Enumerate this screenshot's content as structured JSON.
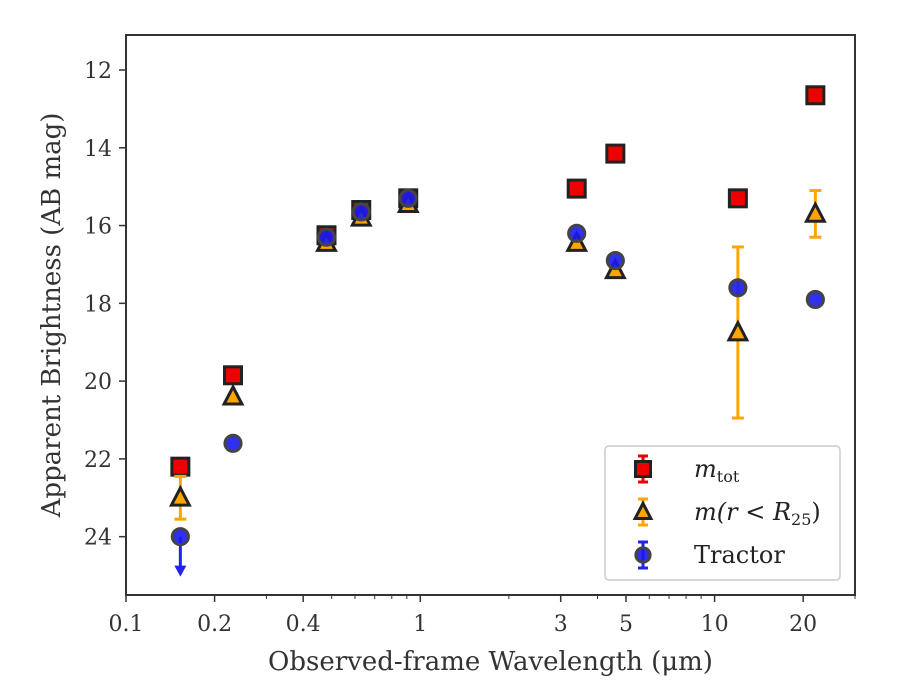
{
  "chart_data": {
    "type": "scatter",
    "title": "",
    "xlabel": "Observed-frame Wavelength (μm)",
    "ylabel": "Apparent Brightness (AB mag)",
    "xscale": "log",
    "xlim": [
      0.1,
      30
    ],
    "ylim": [
      25.5,
      11.1
    ],
    "y_inverted": true,
    "xticks": [
      {
        "value": 0.1,
        "label": "0.1"
      },
      {
        "value": 0.2,
        "label": "0.2"
      },
      {
        "value": 0.4,
        "label": "0.4"
      },
      {
        "value": 1,
        "label": "1"
      },
      {
        "value": 3,
        "label": "3"
      },
      {
        "value": 5,
        "label": "5"
      },
      {
        "value": 10,
        "label": "10"
      },
      {
        "value": 20,
        "label": "20"
      }
    ],
    "yticks": [
      {
        "value": 12,
        "label": "12"
      },
      {
        "value": 14,
        "label": "14"
      },
      {
        "value": 16,
        "label": "16"
      },
      {
        "value": 18,
        "label": "18"
      },
      {
        "value": 20,
        "label": "20"
      },
      {
        "value": 22,
        "label": "22"
      },
      {
        "value": 24,
        "label": "24"
      }
    ],
    "grid": false,
    "legend_position": "lower-right",
    "series": [
      {
        "name": "m_tot",
        "legend_main": "m",
        "legend_sub": "tot",
        "marker": "square",
        "fill": "#ee0000",
        "edge": "#222222",
        "errcolor": "#ee0000",
        "points": [
          {
            "x": 0.153,
            "y": 22.2
          },
          {
            "x": 0.231,
            "y": 19.85
          },
          {
            "x": 0.48,
            "y": 16.25
          },
          {
            "x": 0.63,
            "y": 15.6
          },
          {
            "x": 0.91,
            "y": 15.3
          },
          {
            "x": 3.4,
            "y": 15.05
          },
          {
            "x": 4.6,
            "y": 14.15
          },
          {
            "x": 12.0,
            "y": 15.3
          },
          {
            "x": 22.0,
            "y": 12.65
          }
        ]
      },
      {
        "name": "m(r < R_25)",
        "legend_main": "m(r < R",
        "legend_sub": "25",
        "legend_tail": ")",
        "marker": "triangle",
        "fill": "#ffa500",
        "edge": "#222222",
        "errcolor": "#ffa500",
        "points": [
          {
            "x": 0.153,
            "y": 23.0,
            "err": 0.55
          },
          {
            "x": 0.231,
            "y": 20.4
          },
          {
            "x": 0.48,
            "y": 16.45
          },
          {
            "x": 0.63,
            "y": 15.8
          },
          {
            "x": 0.91,
            "y": 15.45
          },
          {
            "x": 3.4,
            "y": 16.45
          },
          {
            "x": 4.6,
            "y": 17.15
          },
          {
            "x": 12.0,
            "y": 18.75,
            "err": 2.2
          },
          {
            "x": 22.0,
            "y": 15.7,
            "err": 0.6
          }
        ]
      },
      {
        "name": "Tractor",
        "legend_main": "Tractor",
        "marker": "circle",
        "fill": "#1a1aee",
        "edge": "#444444",
        "errcolor": "#2222ee",
        "points": [
          {
            "x": 0.153,
            "y": 24.0,
            "upper_limit": true
          },
          {
            "x": 0.231,
            "y": 21.6
          },
          {
            "x": 0.48,
            "y": 16.3
          },
          {
            "x": 0.63,
            "y": 15.65
          },
          {
            "x": 0.91,
            "y": 15.3
          },
          {
            "x": 3.4,
            "y": 16.2
          },
          {
            "x": 4.6,
            "y": 16.9
          },
          {
            "x": 12.0,
            "y": 17.6
          },
          {
            "x": 22.0,
            "y": 17.9
          }
        ]
      }
    ]
  }
}
